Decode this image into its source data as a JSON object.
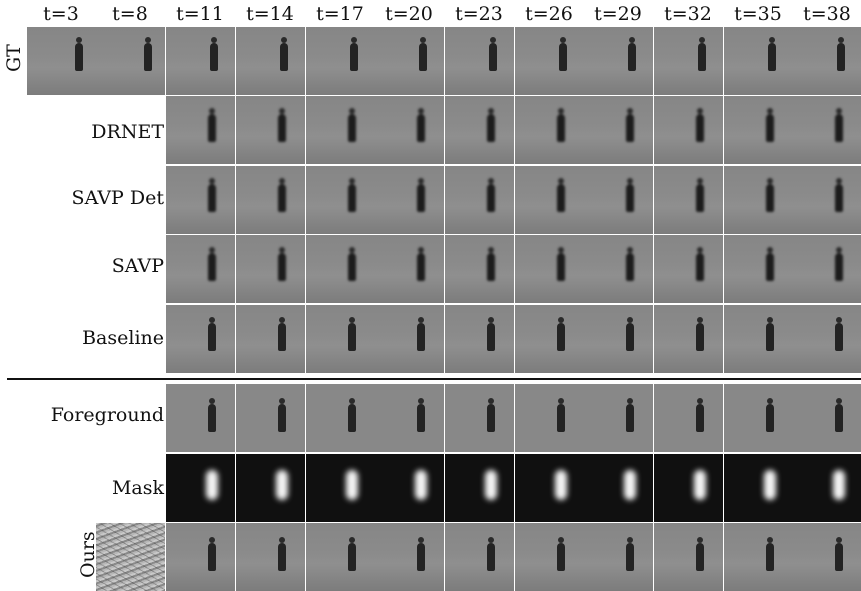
{
  "time_labels": [
    "t=3",
    "t=8",
    "t=11",
    "t=14",
    "t=17",
    "t=20",
    "t=23",
    "t=26",
    "t=29",
    "t=32",
    "t=35",
    "t=38"
  ],
  "rows": [
    {
      "key": "gt",
      "label": "GT"
    },
    {
      "key": "drnet",
      "label": "DRNET"
    },
    {
      "key": "savp_det",
      "label": "SAVP Det"
    },
    {
      "key": "savp",
      "label": "SAVP"
    },
    {
      "key": "baseline",
      "label": "Baseline"
    },
    {
      "key": "foreground",
      "label": "Foreground"
    },
    {
      "key": "mask",
      "label": "Mask"
    },
    {
      "key": "ours",
      "label": "Ours"
    }
  ]
}
